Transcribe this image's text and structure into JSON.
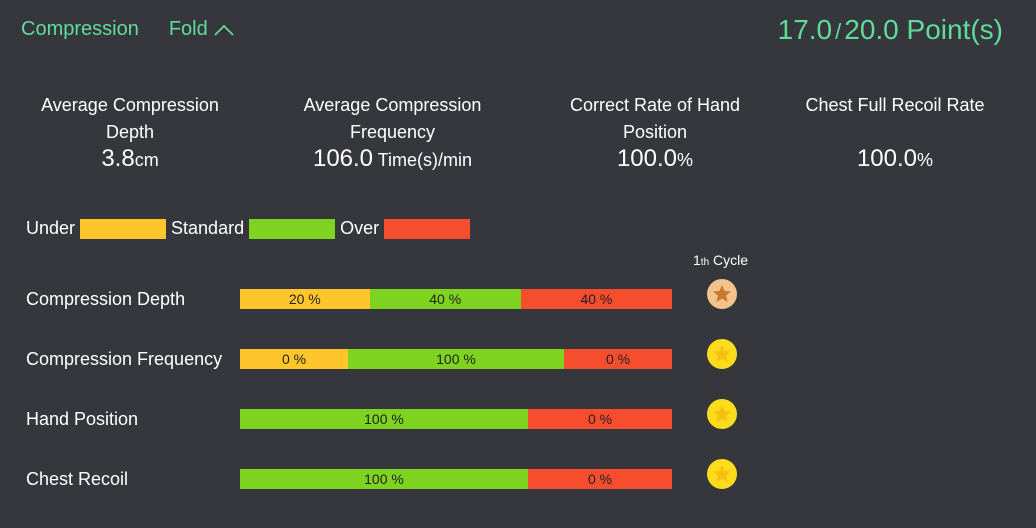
{
  "header": {
    "title": "Compression",
    "fold_label": "Fold",
    "score": "17.0",
    "sep": "/",
    "total": "20.0 Point(s)"
  },
  "stats": [
    {
      "label": "Average Compression Depth",
      "value": "3.8",
      "unit": "cm"
    },
    {
      "label": "Average Compression Frequency",
      "value": "106.0",
      "unit": " Time(s)/min"
    },
    {
      "label": "Correct Rate of Hand Position",
      "value": "100.0",
      "unit": "%"
    },
    {
      "label": "Chest Full Recoil Rate",
      "value": "100.0",
      "unit": "%"
    }
  ],
  "legend": [
    {
      "label": "Under",
      "color": "#fec62a"
    },
    {
      "label": "Standard",
      "color": "#7ed321"
    },
    {
      "label": "Over",
      "color": "#f74d2f"
    }
  ],
  "cycle": {
    "num": "1",
    "suffix": "th",
    "label": " Cycle"
  },
  "rows": [
    {
      "label": "Compression Depth",
      "segments": [
        {
          "type": "under",
          "pct": 20,
          "text": "20 %"
        },
        {
          "type": "standard",
          "pct": 40,
          "text": "40 %"
        },
        {
          "type": "over",
          "pct": 40,
          "text": "40 %"
        }
      ],
      "medal": "bronze"
    },
    {
      "label": "Compression Frequency",
      "segments": [
        {
          "type": "under",
          "pct": 0,
          "text": "0 %"
        },
        {
          "type": "standard",
          "pct": 100,
          "text": "100 %"
        },
        {
          "type": "over",
          "pct": 0,
          "text": "0 %"
        }
      ],
      "medal": "gold"
    },
    {
      "label": "Hand Position",
      "segments": [
        {
          "type": "standard",
          "pct": 100,
          "text": "100 %"
        },
        {
          "type": "over",
          "pct": 0,
          "text": "0 %"
        }
      ],
      "medal": "gold"
    },
    {
      "label": "Chest Recoil",
      "segments": [
        {
          "type": "standard",
          "pct": 100,
          "text": "100 %"
        },
        {
          "type": "over",
          "pct": 0,
          "text": "0 %"
        }
      ],
      "medal": "gold"
    }
  ]
}
